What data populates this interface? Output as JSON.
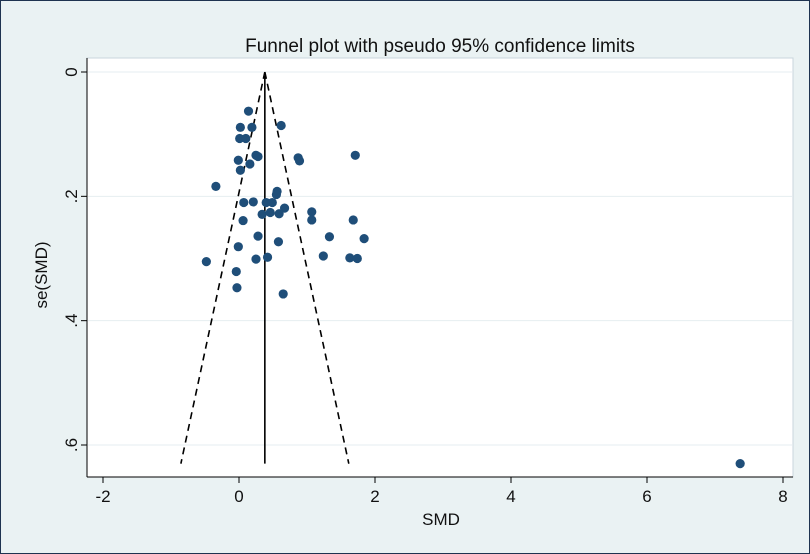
{
  "chart_data": {
    "type": "scatter",
    "title": "Funnel plot with pseudo 95% confidence limits",
    "xlabel": "SMD",
    "ylabel": "se(SMD)",
    "xlim": [
      -2.3,
      8.1
    ],
    "ylim": [
      0,
      0.63
    ],
    "y_axis_inverted": true,
    "grid": true,
    "xticks": [
      -2,
      0,
      2,
      4,
      6,
      8
    ],
    "xtick_labels": [
      "-2",
      "0",
      "2",
      "4",
      "6",
      "8"
    ],
    "yticks": [
      0,
      0.2,
      0.4,
      0.6
    ],
    "ytick_labels": [
      "0",
      ".2",
      ".4",
      ".6"
    ],
    "pooled_estimate": 0.38,
    "funnel_bottom_se": 0.63,
    "colors": {
      "points": "#1f4e79",
      "plot_background": "#ffffff",
      "outer_background": "#eaf2f3",
      "grid": "#e6eef0",
      "lines": "#000000"
    },
    "points": [
      {
        "x": 0.14,
        "y": 0.063
      },
      {
        "x": 0.62,
        "y": 0.086
      },
      {
        "x": 0.02,
        "y": 0.089
      },
      {
        "x": 0.19,
        "y": 0.089
      },
      {
        "x": 0.01,
        "y": 0.107
      },
      {
        "x": 0.1,
        "y": 0.107
      },
      {
        "x": 0.25,
        "y": 0.134
      },
      {
        "x": 0.28,
        "y": 0.136
      },
      {
        "x": 0.87,
        "y": 0.138
      },
      {
        "x": 1.71,
        "y": 0.134
      },
      {
        "x": -0.01,
        "y": 0.142
      },
      {
        "x": 0.89,
        "y": 0.143
      },
      {
        "x": 0.16,
        "y": 0.148
      },
      {
        "x": 0.02,
        "y": 0.158
      },
      {
        "x": -0.34,
        "y": 0.184
      },
      {
        "x": 0.56,
        "y": 0.192
      },
      {
        "x": 0.55,
        "y": 0.197
      },
      {
        "x": 0.4,
        "y": 0.21
      },
      {
        "x": 0.07,
        "y": 0.21
      },
      {
        "x": 0.21,
        "y": 0.209
      },
      {
        "x": 0.49,
        "y": 0.21
      },
      {
        "x": 0.67,
        "y": 0.219
      },
      {
        "x": 1.07,
        "y": 0.225
      },
      {
        "x": 0.34,
        "y": 0.229
      },
      {
        "x": 0.46,
        "y": 0.226
      },
      {
        "x": 0.59,
        "y": 0.228
      },
      {
        "x": 1.07,
        "y": 0.238
      },
      {
        "x": 1.68,
        "y": 0.238
      },
      {
        "x": 0.06,
        "y": 0.239
      },
      {
        "x": 0.28,
        "y": 0.264
      },
      {
        "x": 1.33,
        "y": 0.265
      },
      {
        "x": 1.84,
        "y": 0.268
      },
      {
        "x": 0.58,
        "y": 0.273
      },
      {
        "x": -0.01,
        "y": 0.281
      },
      {
        "x": 1.24,
        "y": 0.296
      },
      {
        "x": 1.63,
        "y": 0.299
      },
      {
        "x": 1.74,
        "y": 0.3
      },
      {
        "x": 0.42,
        "y": 0.298
      },
      {
        "x": 0.25,
        "y": 0.301
      },
      {
        "x": -0.48,
        "y": 0.305
      },
      {
        "x": -0.04,
        "y": 0.321
      },
      {
        "x": -0.03,
        "y": 0.347
      },
      {
        "x": 0.65,
        "y": 0.357
      },
      {
        "x": 7.37,
        "y": 0.63
      }
    ]
  }
}
